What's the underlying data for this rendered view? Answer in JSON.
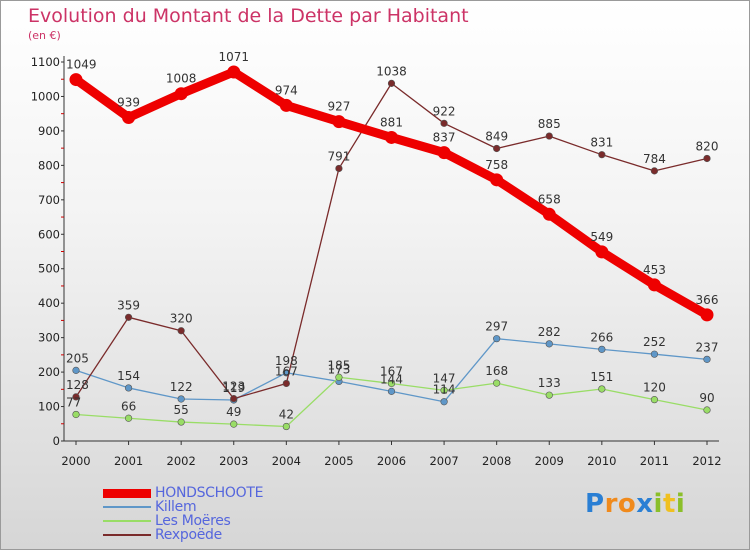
{
  "title": "Evolution du Montant de la Dette par Habitant",
  "subtitle": "(en €)",
  "brand": {
    "text": "Proxiti",
    "letters": [
      "P",
      "r",
      "o",
      "x",
      "i",
      "t",
      "i"
    ],
    "letter_colors": [
      "#2a7fd4",
      "#f08a1c",
      "#f08a1c",
      "#2a7fd4",
      "#8bbf2a",
      "#f0c020",
      "#8bbf2a"
    ]
  },
  "chart_data": {
    "type": "line",
    "x": [
      "2000",
      "2001",
      "2002",
      "2003",
      "2004",
      "2005",
      "2006",
      "2007",
      "2008",
      "2009",
      "2010",
      "2011",
      "2012"
    ],
    "ylim": [
      0,
      1100
    ],
    "yticks": [
      0,
      100,
      200,
      300,
      400,
      500,
      600,
      700,
      800,
      900,
      1000,
      1100
    ],
    "grid": false,
    "legend_position": "bottom-left",
    "series": [
      {
        "name": "HONDSCHOOTE",
        "color": "#ee0000",
        "values": [
          1049,
          939,
          1008,
          1071,
          974,
          927,
          881,
          837,
          758,
          658,
          549,
          453,
          366
        ]
      },
      {
        "name": "Killem",
        "color": "#5f97c8",
        "values": [
          205,
          154,
          122,
          119,
          198,
          173,
          144,
          114,
          297,
          282,
          266,
          252,
          237
        ]
      },
      {
        "name": "Les Moëres",
        "color": "#99dd66",
        "values": [
          77,
          66,
          55,
          49,
          42,
          185,
          167,
          147,
          168,
          133,
          151,
          120,
          90
        ]
      },
      {
        "name": "Rexpoëde",
        "color": "#7a2b2b",
        "values": [
          128,
          359,
          320,
          123,
          167,
          791,
          1038,
          922,
          849,
          885,
          831,
          784,
          820
        ]
      }
    ]
  }
}
